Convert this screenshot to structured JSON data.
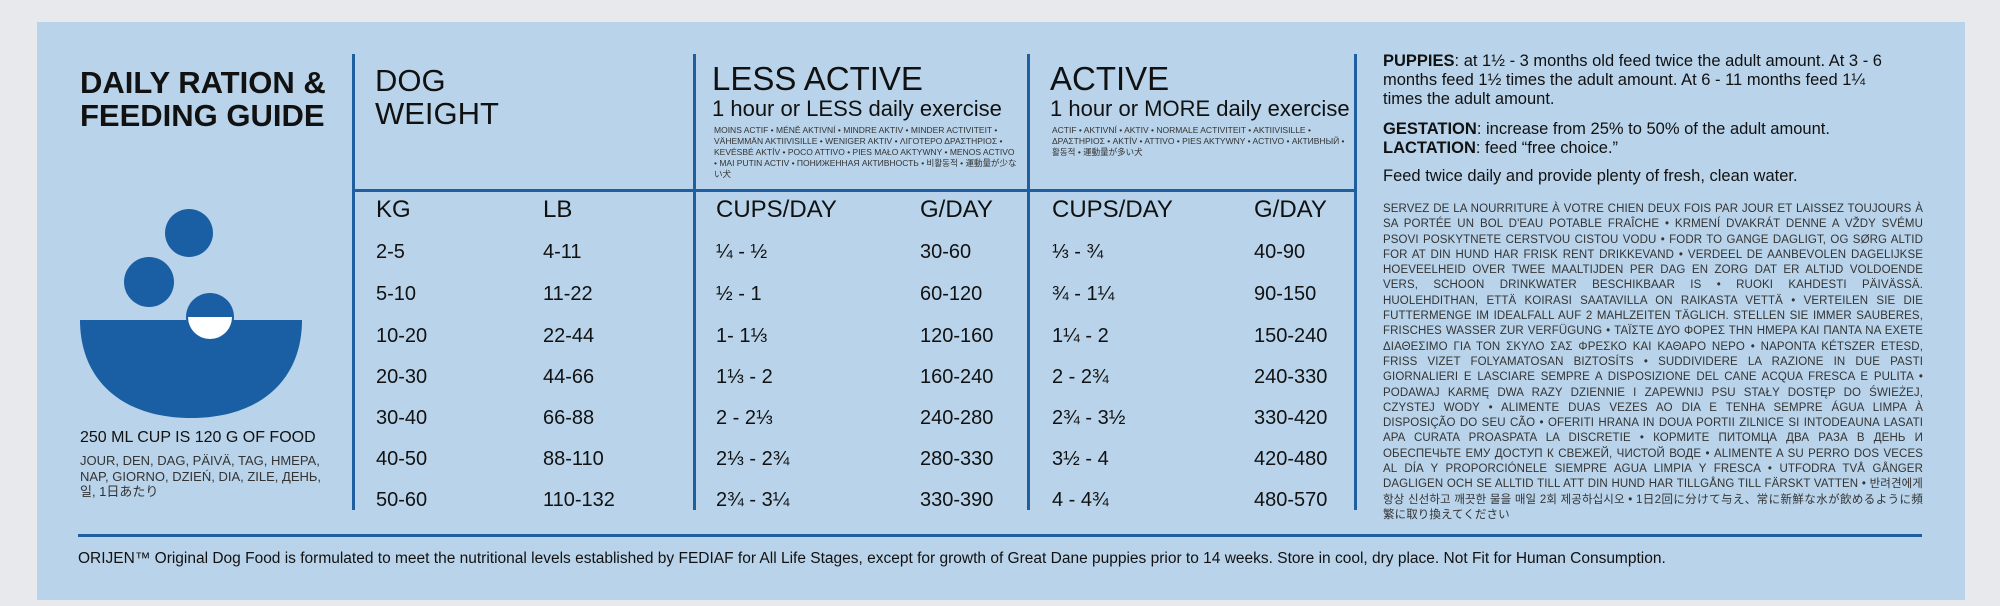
{
  "guide": {
    "title_line1": "DAILY RATION &",
    "title_line2": "FEEDING GUIDE",
    "cup_note": "250 ML CUP IS 120 G OF FOOD",
    "per_day": "JOUR, DEN, DAG, PÄIVÄ, TAG, HMEPA, NAP, GIORNO, DZIEŃ, DIA, ZILE, ДЕНЬ, 일, 1日あたり"
  },
  "dog_weight": {
    "title_line1": "DOG",
    "title_line2": "WEIGHT",
    "kg_header": "KG",
    "lb_header": "LB"
  },
  "less_active": {
    "title": "LESS ACTIVE",
    "subtitle": "1 hour or LESS daily exercise",
    "translations": "MOINS ACTIF • MÉNĚ AKTIVNÍ • MINDRE AKTIV • MINDER ACTIVITEIT • VÄHEMMÄN AKTIIVISILLE • WENIGER AKTIV • ΛΙΓΟΤΕΡΟ ΔΡΑΣΤΗΡΙΟΣ • KEVÉSBÉ AKTÍV • POCO ATTIVO • PIES MAŁO AKTYWNY • MENOS ACTIVO • MAI PUTIN ACTIV • ПОНИЖЕННАЯ АКТИВНОСТЬ • 비활동적 • 運動量が少ない犬",
    "cups_header": "CUPS/DAY",
    "g_header": "G/DAY"
  },
  "active": {
    "title": "ACTIVE",
    "subtitle": "1 hour or MORE daily exercise",
    "translations": "ACTIF • AKTIVNÍ • AKTIV • NORMALE ACTIVITEIT • AKTIIVISILLE • ΔΡΑΣΤΗΡΙΟΣ • AKTÍV • ATTIVO • PIES AKTYWNY • ACTIVO • АКТИВНЫЙ • 활동적 • 運動量が多い犬",
    "cups_header": "CUPS/DAY",
    "g_header": "G/DAY"
  },
  "rows": [
    {
      "kg": "2-5",
      "lb": "4-11",
      "less_cups": "¼ - ½",
      "less_g": "30-60",
      "act_cups": "⅓ - ¾",
      "act_g": "40-90"
    },
    {
      "kg": "5-10",
      "lb": "11-22",
      "less_cups": "½ - 1",
      "less_g": "60-120",
      "act_cups": "¾ - 1¼",
      "act_g": "90-150"
    },
    {
      "kg": "10-20",
      "lb": "22-44",
      "less_cups": "1- 1⅓",
      "less_g": "120-160",
      "act_cups": "1¼ - 2",
      "act_g": "150-240"
    },
    {
      "kg": "20-30",
      "lb": "44-66",
      "less_cups": "1⅓ - 2",
      "less_g": "160-240",
      "act_cups": "2 - 2¾",
      "act_g": "240-330"
    },
    {
      "kg": "30-40",
      "lb": "66-88",
      "less_cups": "2 - 2⅓",
      "less_g": "240-280",
      "act_cups": "2¾ - 3½",
      "act_g": "330-420"
    },
    {
      "kg": "40-50",
      "lb": "88-110",
      "less_cups": "2⅓ - 2¾",
      "less_g": "280-330",
      "act_cups": "3½ - 4",
      "act_g": "420-480"
    },
    {
      "kg": "50-60",
      "lb": "110-132",
      "less_cups": "2¾ - 3¼",
      "less_g": "330-390",
      "act_cups": "4 - 4¾",
      "act_g": "480-570"
    }
  ],
  "notes": {
    "puppies_label": "PUPPIES",
    "puppies_text": ": at 1½ - 3 months old feed twice the adult amount. At  3 - 6 months feed 1½ times the adult amount. At 6 - 11 months feed 1¼ times the adult amount.",
    "gestation_label": "GESTATION",
    "gestation_text": ": increase from 25% to 50% of the adult amount.",
    "lactation_label": "LACTATION",
    "lactation_text": ": feed “free choice.”",
    "feed_twice": "Feed twice daily and provide plenty of fresh, clean water.",
    "multilingual": "SERVEZ DE LA NOURRITURE À VOTRE CHIEN DEUX FOIS PAR JOUR ET LAISSEZ TOUJOURS À SA PORTÉE UN BOL D'EAU POTABLE FRAÎCHE • KRMENÍ DVAKRÁT DENNE A VŽDY SVÉMU PSOVI POSKYTNETE CERSTVOU CISTOU VODU • FODR TO GANGE DAGLIGT, OG SØRG ALTID FOR AT DIN HUND HAR FRISK RENT DRIKKEVAND • VERDEEL DE AANBEVOLEN DAGELIJKSE HOEVEELHEID OVER TWEE MAALTIJDEN PER DAG EN ZORG DAT ER ALTIJD VOLDOENDE VERS, SCHOON DRINKWATER BESCHIKBAAR IS • RUOKI KAHDESTI PÄIVÄSSÄ. HUOLEHDITHAN, ETTÄ KOIRASI SAATAVILLA ON RAIKASTA VETTÄ • VERTEILEN SIE DIE FUTTERMENGE IM IDEALFALL AUF 2 MAHLZEITEN TÄGLICH. STELLEN SIE IMMER SAUBERES, FRISCHES WASSER ZUR VERFÜGUNG • ΤΑΪΣΤΕ ΔΥΟ ΦΟΡΕΣ ΤΗΝ ΗΜΕΡΑ ΚΑΙ ΠΑΝΤΑ ΝΑ ΕΧΕΤΕ ΔΙΑΘΕΣΙΜΟ ΓΙΑ ΤΟΝ ΣΚΥΛΟ ΣΑΣ ΦΡΕΣΚΟ ΚΑΙ ΚΑΘΑΡΟ ΝΕΡΟ • NAPONTA KÉTSZER ETESD, FRISS VIZET FOLYAMATOSAN BIZTOSÍTS • SUDDIVIDERE LA RAZIONE IN DUE PASTI GIORNALIERI E LASCIARE SEMPRE A DISPOSIZIONE DEL CANE ACQUA FRESCA E PULITA • PODAWAJ KARMĘ DWA RAZY DZIENNIE I ZAPEWNIJ PSU STAŁY DOSTĘP DO ŚWIEŻEJ, CZYSTEJ WODY • ALIMENTE DUAS VEZES AO DIA E TENHA SEMPRE ÁGUA LIMPA À DISPOSIÇÃO DO SEU CÃO • OFERITI HRANA IN DOUA PORTII ZILNICE SI INTODEAUNA LASATI APA CURATA PROASPATA LA DISCRETIE • КОРМИТЕ ПИТОМЦА ДВА РАЗА В ДЕНЬ И ОБЕСПЕЧЬТЕ ЕМУ ДОСТУП К СВЕЖЕЙ, ЧИСТОЙ ВОДЕ • ALIMENTE A SU PERRO DOS VECES AL DÍA Y PROPORCIÓNELE SIEMPRE AGUA LIMPIA Y FRESCA • UTFODRA TVÅ GÅNGER DAGLIGEN OCH SE ALLTID TILL ATT DIN HUND HAR TILLGÅNG TILL FÄRSKT VATTEN • 반려견에게 항상 신선하고 깨끗한 물을 매일 2회 제공하십시오 • 1日2回に分けて与え、常に新鮮な水が飲めるように頻繁に取り換えてください"
  },
  "footer": "ORIJEN™ Original Dog Food is formulated to meet the nutritional levels established by FEDIAF for All Life Stages, except for growth of Great Dane puppies prior to 14 weeks. Store in cool, dry place. Not Fit for Human Consumption.",
  "colors": {
    "panel": "#b9d4ea",
    "accent": "#1f5f9f",
    "bowl": "#1a5fa3"
  },
  "icons": [
    "food-bowl-icon"
  ]
}
